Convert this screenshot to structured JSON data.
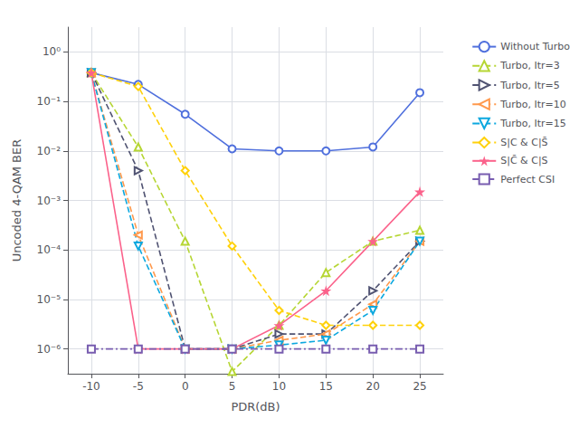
{
  "chart_data": {
    "type": "line",
    "xlabel": "PDR(dB)",
    "ylabel": "Uncoded 4-QAM BER",
    "x": [
      -10,
      -5,
      0,
      5,
      10,
      15,
      20,
      25
    ],
    "series": [
      {
        "name": "Without Turbo",
        "marker": "circle",
        "line_style": "solid",
        "values": [
          0.38,
          0.22,
          0.055,
          0.011,
          0.01,
          0.01,
          0.012,
          0.15
        ]
      },
      {
        "name": "Turbo, Itr=3",
        "marker": "triangle-up",
        "line_style": "dashed",
        "values": [
          0.38,
          0.012,
          0.00015,
          3.5e-07,
          3e-06,
          3.5e-05,
          0.00015,
          0.00025
        ]
      },
      {
        "name": "Turbo, Itr=5",
        "marker": "triangle-right",
        "line_style": "dashed",
        "values": [
          0.38,
          0.004,
          1e-06,
          1e-06,
          2e-06,
          2e-06,
          1.5e-05,
          0.00015
        ]
      },
      {
        "name": "Turbo, Itr=10",
        "marker": "triangle-left",
        "line_style": "dashed",
        "values": [
          0.38,
          0.0002,
          1e-06,
          1e-06,
          1.5e-06,
          2e-06,
          8e-06,
          0.00015
        ]
      },
      {
        "name": "Turbo, Itr=15",
        "marker": "triangle-down",
        "line_style": "dashed",
        "values": [
          0.38,
          0.00012,
          1e-06,
          1e-06,
          1.2e-06,
          1.5e-06,
          6e-06,
          0.00015
        ]
      },
      {
        "name": "S|C & C|S̄",
        "marker": "diamond",
        "line_style": "dashed",
        "values": [
          0.38,
          0.2,
          0.004,
          0.00012,
          6e-06,
          3e-06,
          3e-06,
          3e-06
        ]
      },
      {
        "name": "S|C̄ & C|S",
        "marker": "star",
        "line_style": "solid",
        "values": [
          0.38,
          1e-06,
          1e-06,
          1e-06,
          3e-06,
          1.5e-05,
          0.00015,
          0.0015
        ]
      },
      {
        "name": "Perfect CSI",
        "marker": "square",
        "line_style": "dashdot",
        "values": [
          1e-06,
          1e-06,
          1e-06,
          1e-06,
          1e-06,
          1e-06,
          1e-06,
          1e-06
        ]
      }
    ],
    "xlim": [
      -12.5,
      27.5
    ],
    "xticks": [
      -10,
      -5,
      0,
      5,
      10,
      15,
      20,
      25
    ],
    "ylim": [
      3.162277660168379e-07,
      3.1622776601683795
    ],
    "yticks": [
      {
        "value": 1e-06,
        "label": "10⁻⁶"
      },
      {
        "value": 1e-05,
        "label": "10⁻⁵"
      },
      {
        "value": 0.0001,
        "label": "10⁻⁴"
      },
      {
        "value": 0.001,
        "label": "10⁻³"
      },
      {
        "value": 0.01,
        "label": "10⁻²"
      },
      {
        "value": 0.1,
        "label": "10⁻¹"
      },
      {
        "value": 1,
        "label": "10⁰"
      }
    ],
    "log": "y",
    "grid": true,
    "legend": "upper right"
  }
}
